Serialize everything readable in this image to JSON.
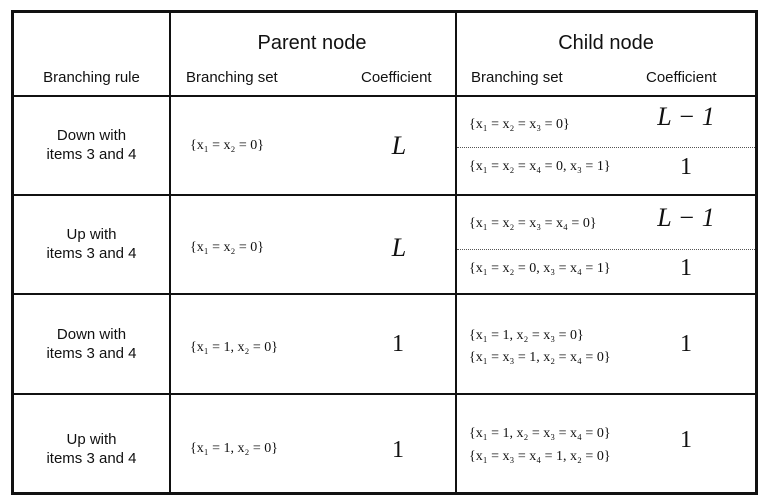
{
  "header": {
    "branching_rule": "Branching rule",
    "parent_group": "Parent node",
    "child_group": "Child node",
    "parent_set": "Branching set",
    "parent_coef": "Coefficient",
    "child_set": "Branching set",
    "child_coef": "Coefficient"
  },
  "rows": [
    {
      "rule_line1": "Down with",
      "rule_line2": "items 3 and 4",
      "parent_set": "{x₁ = x₂ = 0}",
      "parent_coef": "L",
      "child_a_set": "{x₁ = x₂ = x₃ = 0}",
      "child_a_coef": "L − 1",
      "child_b_set": "{x₁ = x₂ = x₄ = 0, x₃ = 1}",
      "child_b_coef": "1"
    },
    {
      "rule_line1": "Up with",
      "rule_line2": "items 3 and 4",
      "parent_set": "{x₁ = x₂ = 0}",
      "parent_coef": "L",
      "child_a_set": "{x₁ = x₂ = x₃ = x₄ = 0}",
      "child_a_coef": "L − 1",
      "child_b_set": "{x₁ = x₂ = 0, x₃ = x₄ = 1}",
      "child_b_coef": "1"
    },
    {
      "rule_line1": "Down with",
      "rule_line2": "items 3 and 4",
      "parent_set": "{x₁ = 1, x₂ = 0}",
      "parent_coef": "1",
      "child_set_line1": "{x₁ = 1, x₂ = x₃ = 0}",
      "child_set_line2": "{x₁ = x₃ = 1, x₂ = x₄ = 0}",
      "child_coef": "1"
    },
    {
      "rule_line1": "Up with",
      "rule_line2": "items 3 and 4",
      "parent_set": "{x₁ = 1, x₂ = 0}",
      "parent_coef": "1",
      "child_set_line1": "{x₁ = 1, x₂ = x₃ = x₄ = 0}",
      "child_set_line2": "{x₁ = x₃ = x₄ = 1, x₂ = 0}",
      "child_coef": "1"
    }
  ]
}
